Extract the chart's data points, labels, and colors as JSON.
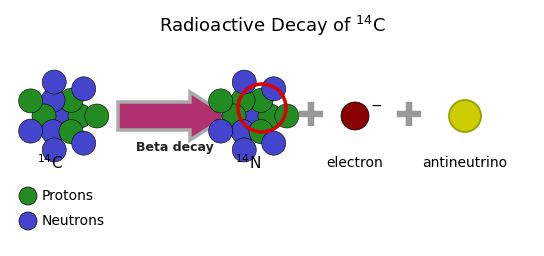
{
  "title": "Radioactive Decay of $^{14}$C",
  "title_fontsize": 13,
  "background_color": "#ffffff",
  "proton_color": "#228B22",
  "neutron_color": "#4444cc",
  "electron_color": "#8B0000",
  "antineutrino_color": "#cccc00",
  "antineutrino_edge": "#999900",
  "plus_color": "#999999",
  "arrow_fill": "#b03070",
  "arrow_edge": "#aaaaaa",
  "red_circle_color": "#dd0000",
  "label_14C": "$^{14}$C",
  "label_14N": "$^{14}$N",
  "label_electron": "electron",
  "label_antineutrino": "antineutrino",
  "label_beta": "Beta decay",
  "legend_proton": "Protons",
  "legend_neutron": "Neutrons",
  "figsize": [
    5.44,
    2.56
  ],
  "dpi": 100
}
